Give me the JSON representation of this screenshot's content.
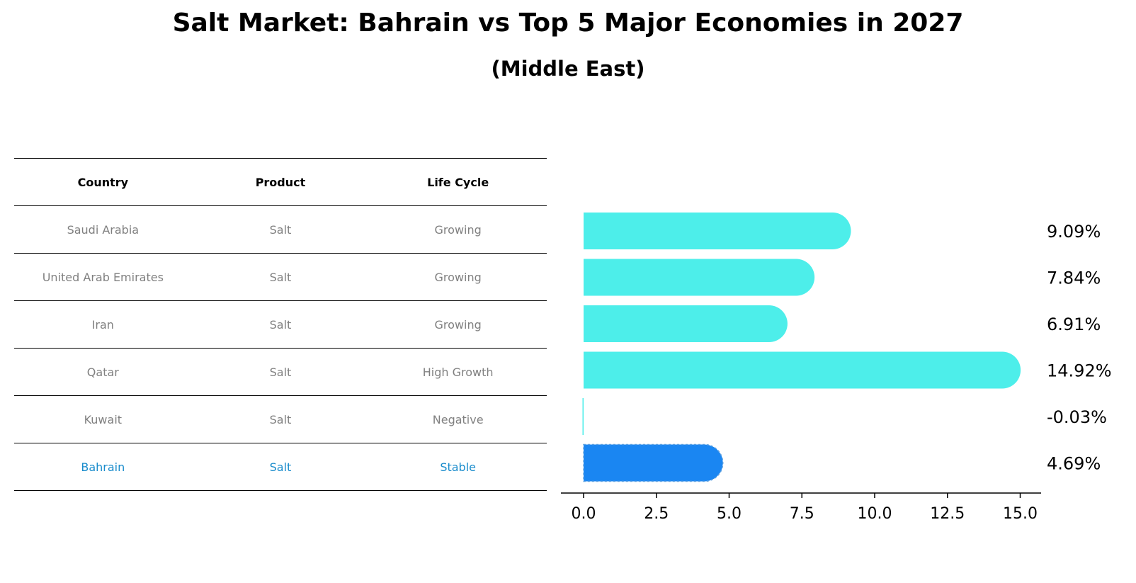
{
  "title": "Salt Market: Bahrain vs Top 5 Major Economies in 2027",
  "subtitle": "(Middle East)",
  "table": {
    "headers": [
      "Country",
      "Product",
      "Life Cycle"
    ],
    "rows": [
      [
        "Saudi Arabia",
        "Salt",
        "Growing"
      ],
      [
        "United Arab Emirates",
        "Salt",
        "Growing"
      ],
      [
        "Iran",
        "Salt",
        "Growing"
      ],
      [
        "Qatar",
        "Salt",
        "High Growth"
      ],
      [
        "Kuwait",
        "Salt",
        "Negative"
      ],
      [
        "Bahrain",
        "Salt",
        "Stable"
      ]
    ],
    "highlight_row": 5
  },
  "colors": {
    "bar": "#4deeea",
    "highlight_bar": "#1a86f2",
    "text_muted": "#808080",
    "text_highlight": "#1a8ccc"
  },
  "chart_data": {
    "type": "bar",
    "orientation": "horizontal",
    "categories": [
      "Saudi Arabia",
      "United Arab Emirates",
      "Iran",
      "Qatar",
      "Kuwait",
      "Bahrain"
    ],
    "values": [
      9.09,
      7.84,
      6.91,
      14.92,
      -0.03,
      4.69
    ],
    "value_labels": [
      "9.09%",
      "7.84%",
      "6.91%",
      "14.92%",
      "-0.03%",
      "4.69%"
    ],
    "highlight_index": 5,
    "xlim": [
      -0.75,
      15.6
    ],
    "xticks": [
      0.0,
      2.5,
      5.0,
      7.5,
      10.0,
      12.5,
      15.0
    ],
    "xtick_labels": [
      "0.0",
      "2.5",
      "5.0",
      "7.5",
      "10.0",
      "12.5",
      "15.0"
    ],
    "grid": false
  }
}
